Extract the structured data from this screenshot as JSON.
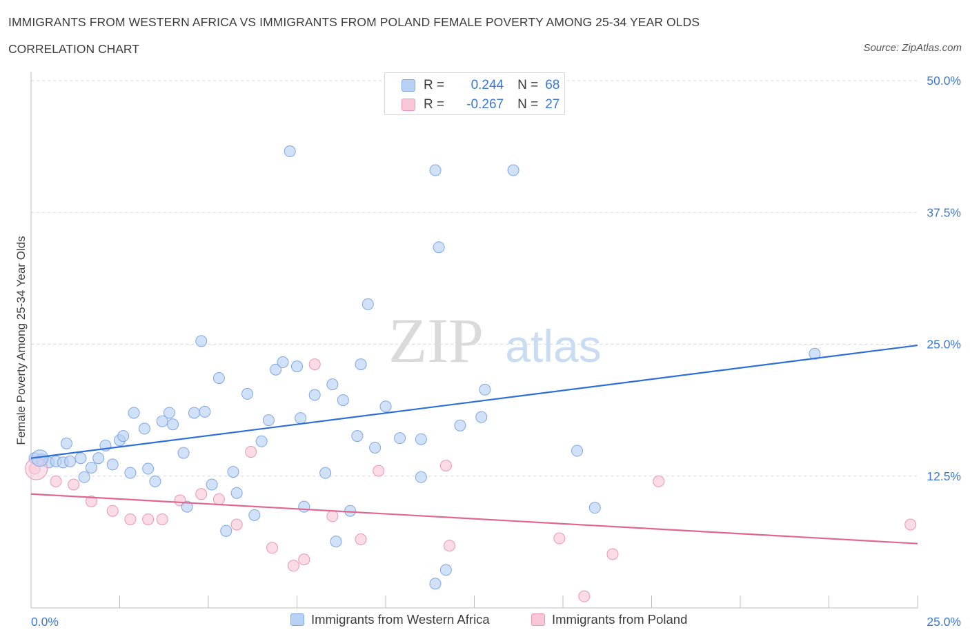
{
  "header": {
    "title": "IMMIGRANTS FROM WESTERN AFRICA VS IMMIGRANTS FROM POLAND FEMALE POVERTY AMONG 25-34 YEAR OLDS",
    "subtitle": "CORRELATION CHART",
    "source": "Source: ZipAtlas.com"
  },
  "watermark": {
    "zip": "ZIP",
    "atlas": "atlas"
  },
  "colors": {
    "blue_fill": "#b9d1f4",
    "blue_stroke": "#7ea6e2",
    "blue_line": "#2d6fd6",
    "pink_fill": "#f8c8d8",
    "pink_stroke": "#e995b3",
    "pink_line": "#e06690",
    "value_text": "#3a78d4",
    "grid": "#d9d9d9"
  },
  "legend": {
    "r_label": "R =",
    "n_label": "N =",
    "rows": [
      {
        "series": "blue",
        "r": "0.244",
        "n": "68"
      },
      {
        "series": "pink",
        "r": "-0.267",
        "n": "27"
      }
    ]
  },
  "bottom_legend": [
    {
      "series": "blue",
      "label": "Immigrants from Western Africa"
    },
    {
      "series": "pink",
      "label": "Immigrants from Poland"
    }
  ],
  "chart_data": {
    "type": "scatter",
    "title": "IMMIGRANTS FROM WESTERN AFRICA VS IMMIGRANTS FROM POLAND FEMALE POVERTY AMONG 25-34 YEAR OLDS",
    "xlabel": "",
    "ylabel": "Female Poverty Among 25-34 Year Olds",
    "xlim": [
      0,
      25
    ],
    "ylim": [
      0,
      50
    ],
    "x_tick_labels": [
      "0.0%",
      "25.0%"
    ],
    "y_ticks": [
      12.5,
      25.0,
      37.5,
      50.0
    ],
    "y_tick_labels": [
      "12.5%",
      "25.0%",
      "37.5%",
      "50.0%"
    ],
    "grid": "horizontal dashed",
    "legend_placement": "top-center and bottom",
    "series": [
      {
        "name": "Immigrants from Western Africa",
        "color": "#b9d1f4",
        "r": 0.244,
        "n": 68,
        "trend": {
          "x": [
            0,
            25
          ],
          "y": [
            14.2,
            24.9
          ]
        },
        "points": [
          [
            0.1,
            14.2
          ],
          [
            0.3,
            14.1
          ],
          [
            0.5,
            13.8
          ],
          [
            0.7,
            13.9
          ],
          [
            0.9,
            13.8
          ],
          [
            1.0,
            15.6
          ],
          [
            1.1,
            13.9
          ],
          [
            1.4,
            14.2
          ],
          [
            1.5,
            12.4
          ],
          [
            1.7,
            13.3
          ],
          [
            1.9,
            14.2
          ],
          [
            2.1,
            15.4
          ],
          [
            2.3,
            13.6
          ],
          [
            2.5,
            15.9
          ],
          [
            2.6,
            16.3
          ],
          [
            2.8,
            12.8
          ],
          [
            2.9,
            18.5
          ],
          [
            3.2,
            17.0
          ],
          [
            3.3,
            13.2
          ],
          [
            3.5,
            12.0
          ],
          [
            3.7,
            17.7
          ],
          [
            3.9,
            18.5
          ],
          [
            4.0,
            17.4
          ],
          [
            4.3,
            14.7
          ],
          [
            4.4,
            9.6
          ],
          [
            4.6,
            18.5
          ],
          [
            4.8,
            25.3
          ],
          [
            4.9,
            18.6
          ],
          [
            5.1,
            11.7
          ],
          [
            5.3,
            21.8
          ],
          [
            5.5,
            7.3
          ],
          [
            5.7,
            12.9
          ],
          [
            5.8,
            10.9
          ],
          [
            6.1,
            20.3
          ],
          [
            6.3,
            8.8
          ],
          [
            6.5,
            15.8
          ],
          [
            6.7,
            17.8
          ],
          [
            6.9,
            22.6
          ],
          [
            7.1,
            23.3
          ],
          [
            7.3,
            43.3
          ],
          [
            7.5,
            22.9
          ],
          [
            7.6,
            18.0
          ],
          [
            7.7,
            9.6
          ],
          [
            8.0,
            20.2
          ],
          [
            8.3,
            12.8
          ],
          [
            8.5,
            21.2
          ],
          [
            8.6,
            6.3
          ],
          [
            8.8,
            19.7
          ],
          [
            9.0,
            9.2
          ],
          [
            9.2,
            16.3
          ],
          [
            9.3,
            23.1
          ],
          [
            9.5,
            28.8
          ],
          [
            9.7,
            15.2
          ],
          [
            10.0,
            19.1
          ],
          [
            10.4,
            16.1
          ],
          [
            11.0,
            12.4
          ],
          [
            11.0,
            16.0
          ],
          [
            11.4,
            2.3
          ],
          [
            11.4,
            41.5
          ],
          [
            11.5,
            34.2
          ],
          [
            11.7,
            3.6
          ],
          [
            12.1,
            17.3
          ],
          [
            12.7,
            18.1
          ],
          [
            12.8,
            20.7
          ],
          [
            13.6,
            41.5
          ],
          [
            15.4,
            14.9
          ],
          [
            15.9,
            9.5
          ],
          [
            22.1,
            24.1
          ]
        ]
      },
      {
        "name": "Immigrants from Poland",
        "color": "#f8c8d8",
        "r": -0.267,
        "n": 27,
        "trend": {
          "x": [
            0,
            25
          ],
          "y": [
            10.8,
            6.1
          ]
        },
        "points": [
          [
            0.1,
            13.2
          ],
          [
            0.7,
            12.0
          ],
          [
            1.2,
            11.7
          ],
          [
            1.7,
            10.1
          ],
          [
            2.3,
            9.2
          ],
          [
            2.8,
            8.4
          ],
          [
            3.3,
            8.4
          ],
          [
            3.7,
            8.4
          ],
          [
            4.2,
            10.2
          ],
          [
            4.8,
            10.8
          ],
          [
            5.3,
            10.3
          ],
          [
            5.8,
            7.9
          ],
          [
            6.2,
            14.8
          ],
          [
            6.8,
            5.7
          ],
          [
            7.4,
            4.0
          ],
          [
            7.7,
            4.6
          ],
          [
            8.0,
            23.1
          ],
          [
            8.5,
            8.7
          ],
          [
            9.3,
            6.5
          ],
          [
            9.8,
            13.0
          ],
          [
            11.7,
            13.5
          ],
          [
            11.8,
            5.9
          ],
          [
            14.9,
            6.6
          ],
          [
            15.6,
            1.1
          ],
          [
            16.4,
            5.1
          ],
          [
            17.7,
            12.0
          ],
          [
            24.8,
            7.9
          ]
        ]
      }
    ]
  }
}
